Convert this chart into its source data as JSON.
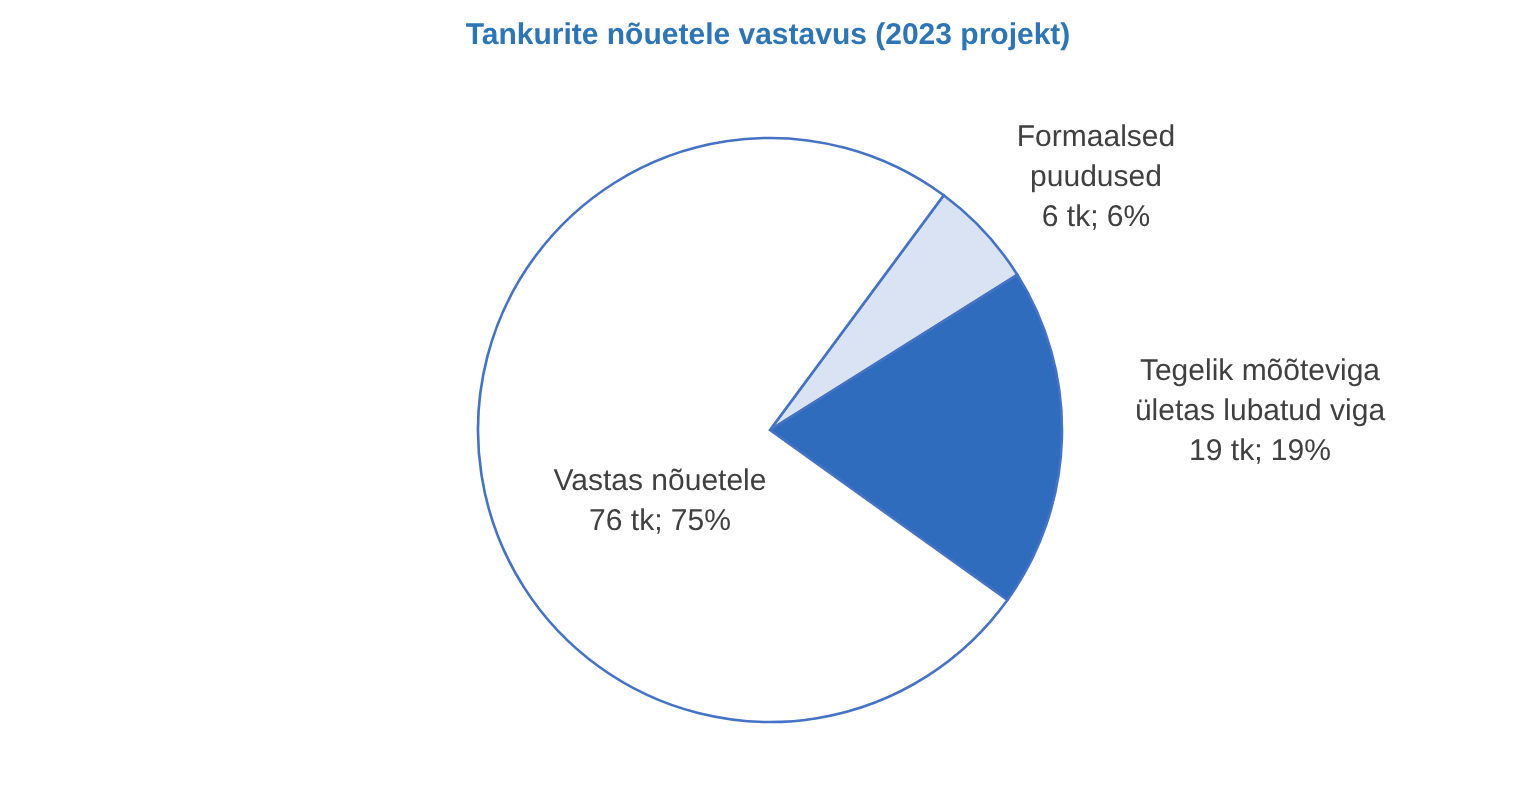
{
  "chart_data": {
    "type": "pie",
    "title": "Tankurite nõuetele vastavus (2023 projekt)",
    "categories": [
      "Formaalsed puudused",
      "Tegelik mõõteviga ületas lubatud viga",
      "Vastas nõuetele"
    ],
    "values": [
      6,
      19,
      76
    ],
    "value_labels": [
      "6 tk; 6%",
      "19 tk; 19%",
      "76 tk; 75%"
    ],
    "colors": [
      "#dae3f3",
      "#2f6cbd",
      "#ffffff"
    ]
  }
}
